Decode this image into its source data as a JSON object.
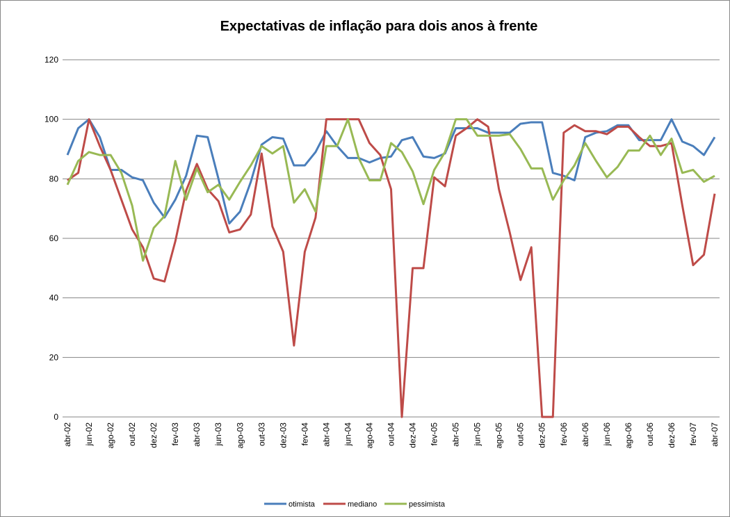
{
  "chart_data": {
    "type": "line",
    "title": "Expectativas de inflação para dois anos à frente",
    "categories": [
      "abr-02",
      null,
      "jun-02",
      null,
      "ago-02",
      null,
      "out-02",
      null,
      "dez-02",
      null,
      "fev-03",
      null,
      "abr-03",
      null,
      "jun-03",
      null,
      "ago-03",
      null,
      "out-03",
      null,
      "dez-03",
      null,
      "fev-04",
      null,
      "abr-04",
      null,
      "jun-04",
      null,
      "ago-04",
      null,
      "out-04",
      null,
      "dez-04",
      null,
      "fev-05",
      null,
      "abr-05",
      null,
      "jun-05",
      null,
      "ago-05",
      null,
      "out-05",
      null,
      "dez-05",
      null,
      "fev-06",
      null,
      "abr-06",
      null,
      "jun-06",
      null,
      "ago-06",
      null,
      "out-06",
      null,
      "dez-06",
      null,
      "fev-07",
      null,
      "abr-07"
    ],
    "series": [
      {
        "name": "otimista",
        "color": "#4a7ebb",
        "values": [
          88,
          97,
          100,
          94,
          83,
          83,
          80.5,
          79.5,
          72,
          67,
          73,
          81,
          94.5,
          94,
          80,
          65,
          69,
          79,
          91.5,
          94,
          93.5,
          84.5,
          84.5,
          89,
          96,
          91,
          87,
          87,
          85.5,
          87,
          87.5,
          93,
          94,
          87.5,
          87,
          88.5,
          97,
          97,
          97,
          95.5,
          95.5,
          95.5,
          98.5,
          99,
          99,
          82,
          81,
          79.5,
          94,
          95.5,
          96,
          98,
          98,
          93,
          93,
          93,
          100,
          92.5,
          91,
          88,
          94
        ]
      },
      {
        "name": "mediano",
        "color": "#be4b48",
        "values": [
          79.5,
          82,
          100,
          91,
          83,
          73,
          63,
          57,
          46.5,
          45.5,
          59,
          76,
          85,
          76.5,
          72.5,
          62,
          63,
          68,
          88.5,
          64,
          55.5,
          24,
          55.5,
          67,
          100,
          100,
          100,
          100,
          92,
          88,
          76.5,
          0,
          50,
          50,
          80.5,
          77.5,
          94.5,
          97,
          100,
          97.5,
          76.5,
          62,
          46,
          57,
          0,
          0,
          95.5,
          98,
          96,
          96,
          95,
          97.5,
          97.5,
          94,
          91,
          91,
          92,
          71,
          51,
          54.5,
          75
        ]
      },
      {
        "name": "pessimista",
        "color": "#98b954",
        "values": [
          78,
          86,
          89,
          88,
          88,
          82,
          71,
          52.5,
          63.5,
          67.5,
          86,
          73,
          83.5,
          75.5,
          78,
          73,
          79,
          84.5,
          91,
          88.5,
          91,
          72,
          76.5,
          69,
          91,
          91,
          100,
          87,
          79.5,
          79.5,
          92,
          89,
          82.5,
          71.5,
          83,
          89,
          100,
          100,
          94.5,
          94.5,
          94.5,
          95,
          90,
          83.5,
          83.5,
          73,
          79.5,
          84.5,
          92,
          86,
          80.5,
          84,
          89.5,
          89.5,
          94.5,
          88,
          93.5,
          82,
          83,
          79,
          81
        ]
      }
    ],
    "ylim": [
      0,
      120
    ],
    "yticks": [
      0,
      20,
      40,
      60,
      80,
      100,
      120
    ],
    "grid": true,
    "legend": "bottom"
  }
}
